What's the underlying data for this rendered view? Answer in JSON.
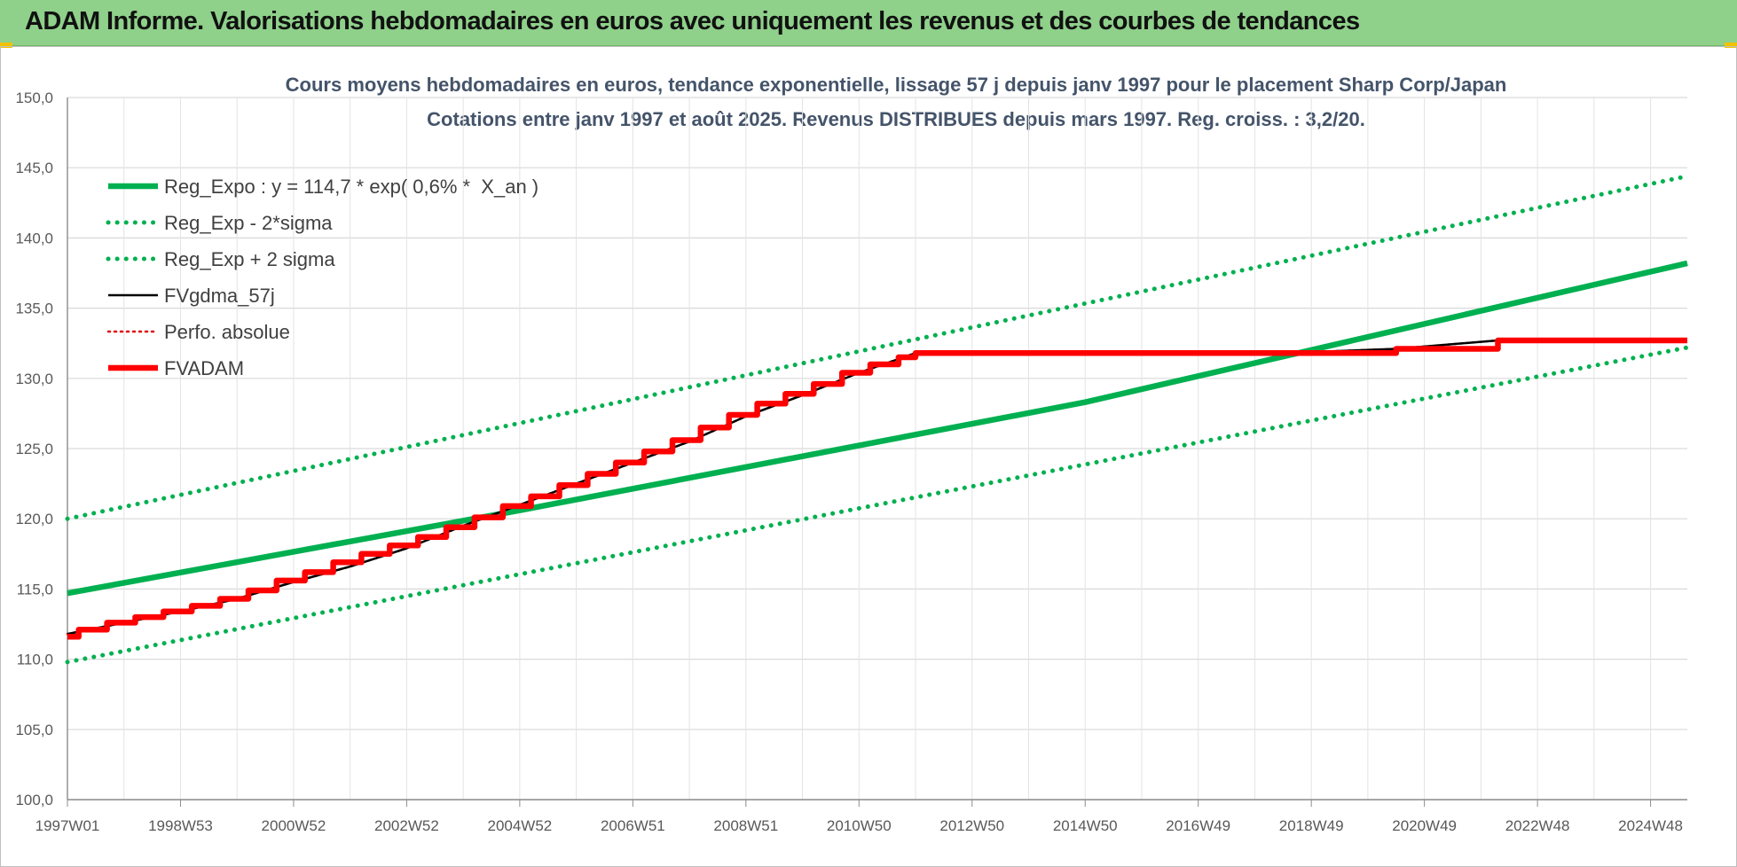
{
  "banner": {
    "title": "ADAM Informe. Valorisations hebdomadaires en euros avec uniquement les revenus et des courbes de tendances"
  },
  "chart_data": {
    "type": "line",
    "title": "Cours moyens hebdomadaires en euros, tendance exponentielle, lissage 57 j depuis janv 1997 pour le placement Sharp Corp/Japan",
    "subtitle": "Cotations entre janv 1997 et août 2025. Revenus DISTRIBUES depuis mars 1997. Reg. croiss. : 3,2/20.",
    "xlabel": "",
    "ylabel": "",
    "ylim": [
      100,
      150
    ],
    "yticks": [
      "100,0",
      "105,0",
      "110,0",
      "115,0",
      "120,0",
      "125,0",
      "130,0",
      "135,0",
      "140,0",
      "145,0",
      "150,0"
    ],
    "xlim": [
      1997.0,
      2025.65
    ],
    "xticks": [
      {
        "label": "1997W01",
        "year": 1997.0
      },
      {
        "label": "1998W53",
        "year": 1999.0
      },
      {
        "label": "2000W52",
        "year": 2001.0
      },
      {
        "label": "2002W52",
        "year": 2003.0
      },
      {
        "label": "2004W52",
        "year": 2005.0
      },
      {
        "label": "2006W51",
        "year": 2007.0
      },
      {
        "label": "2008W51",
        "year": 2009.0
      },
      {
        "label": "2010W50",
        "year": 2011.0
      },
      {
        "label": "2012W50",
        "year": 2013.0
      },
      {
        "label": "2014W50",
        "year": 2015.0
      },
      {
        "label": "2016W49",
        "year": 2017.0
      },
      {
        "label": "2018W49",
        "year": 2019.0
      },
      {
        "label": "2020W49",
        "year": 2021.0
      },
      {
        "label": "2022W48",
        "year": 2023.0
      },
      {
        "label": "2024W48",
        "year": 2025.0
      }
    ],
    "grid": true,
    "legend_position": "top-left",
    "series": [
      {
        "name": "Reg_Expo : y = 114,7 * exp( 0,6% *  X_an )",
        "color": "#00b050",
        "style": "solid",
        "x": [
          1997.0,
          2005.0,
          2015.0,
          2025.65
        ],
        "y": [
          114.7,
          120.6,
          128.3,
          138.2
        ]
      },
      {
        "name": "Reg_Exp - 2*sigma",
        "color": "#00b050",
        "style": "dotted",
        "x": [
          1997.0,
          2025.65
        ],
        "y": [
          109.8,
          132.2
        ]
      },
      {
        "name": "Reg_Exp + 2 sigma",
        "color": "#00b050",
        "style": "dotted",
        "x": [
          1997.0,
          2025.65
        ],
        "y": [
          120.0,
          144.4
        ]
      },
      {
        "name": "FVgdma_57j",
        "color": "#000000",
        "style": "solid",
        "x": [
          1997.0,
          1998.0,
          1999.0,
          2000.0,
          2001.0,
          2002.0,
          2003.0,
          2004.0,
          2005.0,
          2006.0,
          2007.0,
          2008.0,
          2009.0,
          2010.0,
          2011.0,
          2012.0,
          2018.5,
          2020.5,
          2022.3,
          2025.65
        ],
        "y": [
          111.8,
          112.6,
          113.4,
          114.3,
          115.5,
          116.6,
          117.9,
          119.5,
          121.0,
          122.5,
          124.0,
          125.5,
          127.3,
          128.8,
          130.4,
          131.8,
          131.8,
          132.1,
          132.7,
          132.7
        ]
      },
      {
        "name": "Perfo. absolue",
        "color": "#e00000",
        "style": "dotted",
        "x": [
          1997.0,
          1998.0,
          1999.0,
          2000.0,
          2001.0,
          2002.0,
          2003.0,
          2004.0,
          2005.0,
          2006.0,
          2007.0,
          2008.0,
          2009.0,
          2010.0,
          2011.0,
          2012.0,
          2018.5,
          2020.5,
          2022.3,
          2025.65
        ],
        "y": [
          111.8,
          112.6,
          113.4,
          114.3,
          115.5,
          116.6,
          117.9,
          119.5,
          121.0,
          122.5,
          124.0,
          125.5,
          127.3,
          128.8,
          130.4,
          131.8,
          131.8,
          132.1,
          132.7,
          132.7
        ]
      },
      {
        "name": "FVADAM",
        "color": "#ff0000",
        "style": "solid",
        "x": [
          1997.0,
          1997.2,
          1997.7,
          1998.2,
          1998.7,
          1999.2,
          1999.7,
          2000.2,
          2000.7,
          2001.2,
          2001.7,
          2002.2,
          2002.7,
          2003.2,
          2003.7,
          2004.2,
          2004.7,
          2005.2,
          2005.7,
          2006.2,
          2006.7,
          2007.2,
          2007.7,
          2008.2,
          2008.7,
          2009.2,
          2009.7,
          2010.2,
          2010.7,
          2011.2,
          2011.7,
          2012.0,
          2018.5,
          2020.5,
          2022.3,
          2025.65
        ],
        "y": [
          111.6,
          112.1,
          112.6,
          113.0,
          113.4,
          113.8,
          114.3,
          114.9,
          115.6,
          116.2,
          116.9,
          117.5,
          118.1,
          118.7,
          119.4,
          120.1,
          120.9,
          121.6,
          122.4,
          123.2,
          124.0,
          124.8,
          125.6,
          126.5,
          127.4,
          128.2,
          128.9,
          129.6,
          130.4,
          131.0,
          131.5,
          131.8,
          131.8,
          132.1,
          132.7,
          132.7
        ]
      }
    ]
  }
}
